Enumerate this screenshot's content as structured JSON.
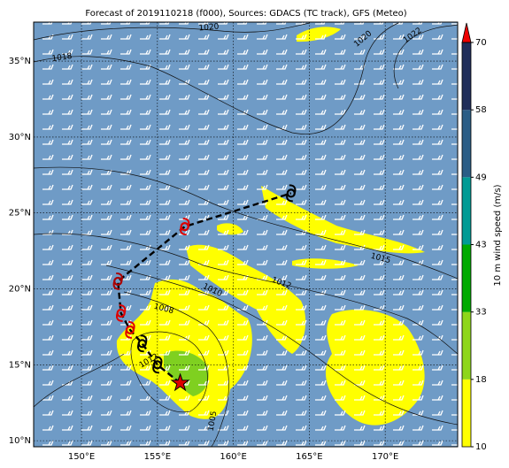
{
  "map": {
    "title": "Forecast of 2019110218 (f000), Sources: GDACS (TC track), GFS (Meteo)",
    "lonlim": [
      146.85,
      174.77
    ],
    "latlim": [
      9.6,
      37.57
    ],
    "lonticks": [
      {
        "value": 150,
        "label": "150°E"
      },
      {
        "value": 155,
        "label": "155°E"
      },
      {
        "value": 160,
        "label": "160°E"
      },
      {
        "value": 165,
        "label": "165°E"
      },
      {
        "value": 170,
        "label": "170°E"
      }
    ],
    "latticks": [
      {
        "value": 10,
        "label": "10°N"
      },
      {
        "value": 15,
        "label": "15°N"
      },
      {
        "value": 20,
        "label": "20°N"
      },
      {
        "value": 25,
        "label": "25°N"
      },
      {
        "value": 30,
        "label": "30°N"
      },
      {
        "value": 35,
        "label": "35°N"
      }
    ],
    "grid": true,
    "ocean_color": "#6f9bc6",
    "colorbar": {
      "label": "10 m wind speed (m/s)",
      "ticks": [
        10,
        18,
        33,
        43,
        49,
        58,
        70
      ],
      "colors": [
        "#ffff00",
        "#8ed61a",
        "#00aa00",
        "#009b95",
        "#2a5d86",
        "#1f2d5a"
      ],
      "extend_color": "#ee0000"
    },
    "isobar_labels": [
      "1020",
      "1018",
      "1020",
      "1022",
      "1015",
      "1012",
      "1010",
      "1008",
      "1012",
      "1005"
    ],
    "track": [
      {
        "lon": 156.5,
        "lat": 13.8,
        "color": "#dd0000"
      },
      {
        "lon": 155.0,
        "lat": 15.0,
        "color": "#000000"
      },
      {
        "lon": 154.0,
        "lat": 16.4,
        "color": "#000000"
      },
      {
        "lon": 153.2,
        "lat": 17.3,
        "color": "#dd0000"
      },
      {
        "lon": 152.6,
        "lat": 18.4,
        "color": "#dd0000"
      },
      {
        "lon": 152.4,
        "lat": 20.5,
        "color": "#aa0000"
      },
      {
        "lon": 156.8,
        "lat": 24.1,
        "color": "#dd0000"
      },
      {
        "lon": 163.8,
        "lat": 26.3,
        "color": "#000000"
      }
    ]
  }
}
